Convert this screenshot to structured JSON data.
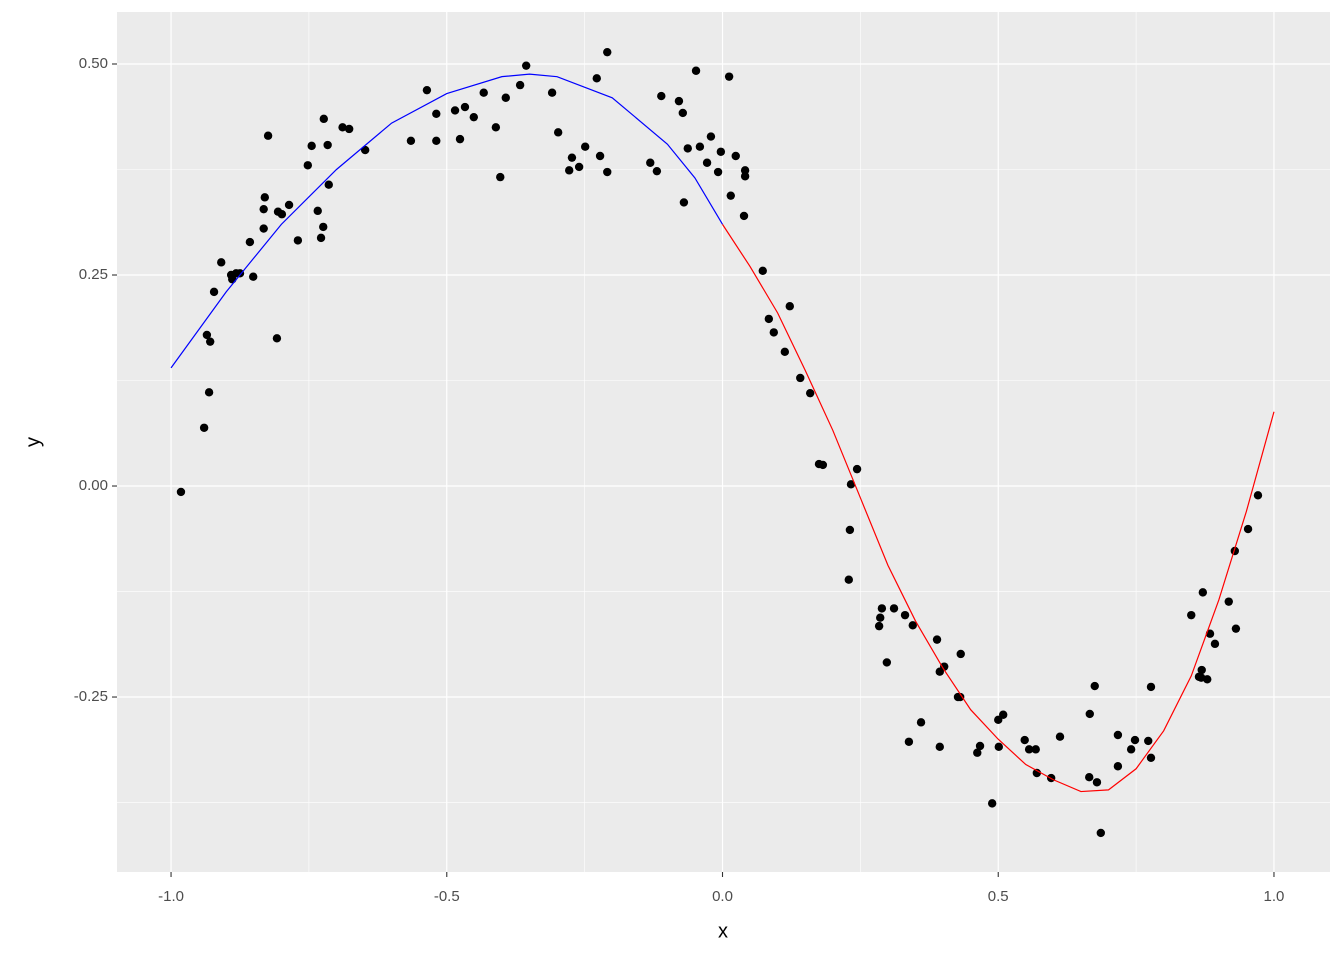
{
  "chart_data": {
    "type": "scatter",
    "x_label": "x",
    "y_label": "y",
    "xlim": [
      -1.098,
      1.1016
    ],
    "ylim": [
      -0.4573,
      0.5616
    ],
    "xticks": [
      {
        "value": -1.0,
        "label": "-1.0"
      },
      -0.5,
      {
        "value": 0.0,
        "label": "0.0"
      },
      0.5,
      {
        "value": 1.0,
        "label": "1.0"
      }
    ],
    "yticks": [
      -0.25,
      {
        "value": 0.0,
        "label": "0.00"
      },
      0.25,
      {
        "value": 0.5,
        "label": "0.50"
      }
    ],
    "x_minor_grid": [
      -0.75,
      -0.25,
      0.25,
      0.75
    ],
    "y_minor_grid": [
      -0.375,
      -0.125,
      0.125,
      0.375
    ],
    "grid": true,
    "color": "#000000",
    "x": [
      -0.982,
      -0.94,
      -0.935,
      -0.931,
      -0.929,
      -0.922,
      -0.909,
      -0.891,
      -0.889,
      -0.882,
      -0.875,
      -0.857,
      -0.851,
      -0.832,
      -0.832,
      -0.83,
      -0.824,
      -0.808,
      -0.806,
      -0.799,
      -0.786,
      -0.77,
      -0.752,
      -0.745,
      -0.734,
      -0.728,
      -0.724,
      -0.723,
      -0.716,
      -0.714,
      -0.689,
      -0.677,
      -0.648,
      -0.565,
      -0.536,
      -0.519,
      -0.519,
      -0.485,
      -0.476,
      -0.467,
      -0.451,
      -0.433,
      -0.411,
      -0.403,
      -0.393,
      -0.367,
      -0.356,
      -0.309,
      -0.298,
      -0.278,
      -0.273,
      -0.26,
      -0.249,
      -0.228,
      -0.222,
      -0.209,
      -0.209,
      -0.131,
      -0.119,
      -0.111,
      -0.079,
      -0.072,
      -0.07,
      -0.063,
      -0.048,
      -0.041,
      -0.028,
      -0.021,
      -0.008,
      -0.003,
      0.012,
      0.015,
      0.024,
      0.039,
      0.041,
      0.041,
      0.073,
      0.084,
      0.093,
      0.113,
      0.122,
      0.141,
      0.159,
      0.175,
      0.182,
      0.229,
      0.231,
      0.233,
      0.244,
      0.284,
      0.286,
      0.289,
      0.298,
      0.311,
      0.331,
      0.338,
      0.345,
      0.36,
      0.389,
      0.394,
      0.394,
      0.402,
      0.427,
      0.431,
      0.432,
      0.462,
      0.467,
      0.489,
      0.5,
      0.501,
      0.509,
      0.548,
      0.556,
      0.568,
      0.57,
      0.596,
      0.612,
      0.665,
      0.666,
      0.675,
      0.679,
      0.686,
      0.717,
      0.717,
      0.741,
      0.748,
      0.772,
      0.777,
      0.777,
      0.85,
      0.864,
      0.868,
      0.869,
      0.871,
      0.879,
      0.884,
      0.893,
      0.918,
      0.929,
      0.931,
      0.953,
      0.971
    ],
    "values": [
      -0.007,
      0.069,
      0.179,
      0.111,
      0.171,
      0.23,
      0.265,
      0.25,
      0.245,
      0.252,
      0.252,
      0.289,
      0.248,
      0.305,
      0.328,
      0.342,
      0.415,
      0.175,
      0.325,
      0.322,
      0.333,
      0.291,
      0.38,
      0.403,
      0.326,
      0.294,
      0.307,
      0.435,
      0.404,
      0.357,
      0.425,
      0.423,
      0.398,
      0.409,
      0.469,
      0.441,
      0.409,
      0.445,
      0.411,
      0.449,
      0.437,
      0.466,
      0.425,
      0.366,
      0.46,
      0.475,
      0.498,
      0.466,
      0.419,
      0.374,
      0.389,
      0.378,
      0.402,
      0.483,
      0.391,
      0.514,
      0.372,
      0.383,
      0.373,
      0.462,
      0.456,
      0.442,
      0.336,
      0.4,
      0.492,
      0.402,
      0.383,
      0.414,
      0.372,
      0.396,
      0.485,
      0.344,
      0.391,
      0.32,
      0.374,
      0.367,
      0.255,
      0.198,
      0.182,
      0.159,
      0.213,
      0.128,
      0.11,
      0.026,
      0.025,
      -0.111,
      -0.052,
      0.002,
      0.02,
      -0.166,
      -0.156,
      -0.145,
      -0.209,
      -0.145,
      -0.153,
      -0.303,
      -0.165,
      -0.28,
      -0.182,
      -0.22,
      -0.309,
      -0.214,
      -0.25,
      -0.25,
      -0.199,
      -0.316,
      -0.308,
      -0.376,
      -0.277,
      -0.309,
      -0.271,
      -0.301,
      -0.312,
      -0.312,
      -0.34,
      -0.346,
      -0.297,
      -0.345,
      -0.27,
      -0.237,
      -0.351,
      -0.411,
      -0.295,
      -0.332,
      -0.312,
      -0.301,
      -0.302,
      -0.238,
      -0.322,
      -0.153,
      -0.226,
      -0.227,
      -0.218,
      -0.126,
      -0.229,
      -0.175,
      -0.187,
      -0.137,
      -0.077,
      -0.169,
      -0.051,
      -0.011
    ],
    "fits": [
      {
        "color": "#0000ff",
        "x": [
          -1.0,
          -0.9,
          -0.8,
          -0.7,
          -0.6,
          -0.5,
          -0.4,
          -0.35,
          -0.3,
          -0.2,
          -0.1,
          -0.05,
          0.0
        ],
        "values": [
          0.14,
          0.23,
          0.31,
          0.375,
          0.43,
          0.465,
          0.485,
          0.488,
          0.485,
          0.46,
          0.405,
          0.365,
          0.31
        ]
      },
      {
        "color": "#ff0000",
        "x": [
          0.0,
          0.05,
          0.1,
          0.15,
          0.2,
          0.25,
          0.3,
          0.35,
          0.4,
          0.45,
          0.5,
          0.55,
          0.6,
          0.65,
          0.7,
          0.75,
          0.8,
          0.85,
          0.9,
          0.95,
          1.0
        ],
        "values": [
          0.31,
          0.26,
          0.205,
          0.137,
          0.066,
          -0.014,
          -0.094,
          -0.16,
          -0.216,
          -0.265,
          -0.3,
          -0.33,
          -0.348,
          -0.362,
          -0.36,
          -0.335,
          -0.29,
          -0.225,
          -0.135,
          -0.03,
          0.088
        ]
      }
    ]
  }
}
